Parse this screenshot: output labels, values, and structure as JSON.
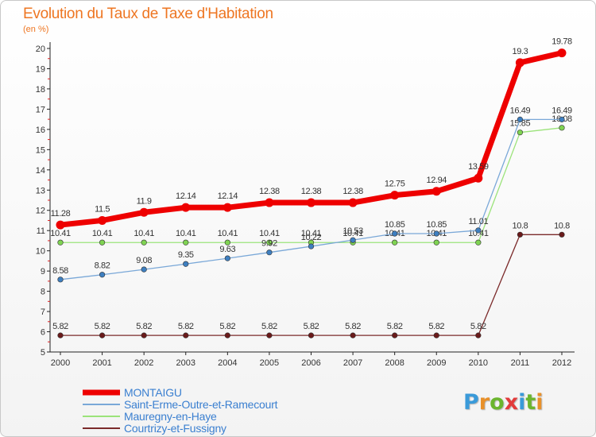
{
  "title": "Evolution du Taux de Taxe d'Habitation",
  "subtitle": "(en %)",
  "logo": {
    "text": "Proxiti",
    "letter_colors": [
      "#3a9ad9",
      "#e8902a",
      "#6bb52e",
      "#e23b3b",
      "#3a9ad9",
      "#6bb52e",
      "#e8902a"
    ]
  },
  "chart_data": {
    "type": "line",
    "x": [
      "2000",
      "2001",
      "2002",
      "2003",
      "2004",
      "2005",
      "2006",
      "2007",
      "2008",
      "2009",
      "2010",
      "2011",
      "2012"
    ],
    "ylim": [
      5,
      20
    ],
    "yticks": [
      5,
      6,
      7,
      8,
      9,
      10,
      11,
      12,
      13,
      14,
      15,
      16,
      17,
      18,
      19,
      20
    ],
    "grid": false,
    "legend_position": "bottom-left",
    "series": [
      {
        "name": "Courtrizy-et-Fussigny",
        "color": "#7b2a2a",
        "marker": "#6a1a1a",
        "width": 1.3,
        "values": [
          5.82,
          5.82,
          5.82,
          5.82,
          5.82,
          5.82,
          5.82,
          5.82,
          5.82,
          5.82,
          5.82,
          10.8,
          10.8
        ],
        "labels": [
          "5.82",
          "5.82",
          "5.82",
          "5.82",
          "5.82",
          "5.82",
          "5.82",
          "5.82",
          "5.82",
          "5.82",
          "5.82",
          "10.8",
          "10.8"
        ]
      },
      {
        "name": "Mauregny-en-Haye",
        "color": "#9be37a",
        "marker": "#7fd352",
        "width": 1.3,
        "values": [
          10.41,
          10.41,
          10.41,
          10.41,
          10.41,
          10.41,
          10.41,
          10.41,
          10.41,
          10.41,
          10.41,
          15.85,
          16.08
        ],
        "labels": [
          "10.41",
          "10.41",
          "10.41",
          "10.41",
          "10.41",
          "10.41",
          "10.41",
          "10.41",
          "10.41",
          "10.41",
          "10.41",
          "15.85",
          "16.08"
        ]
      },
      {
        "name": "Saint-Erme-Outre-et-Ramecourt",
        "color": "#7aa8d8",
        "marker": "#3e7fc0",
        "width": 1.3,
        "values": [
          8.58,
          8.82,
          9.08,
          9.35,
          9.63,
          9.92,
          10.22,
          10.53,
          10.85,
          10.85,
          11.01,
          16.49,
          16.49
        ],
        "labels": [
          "8.58",
          "8.82",
          "9.08",
          "9.35",
          "9.63",
          "9.92",
          "10.22",
          "10.53",
          "10.85",
          "10.85",
          "11.01",
          "16.49",
          "16.49"
        ]
      },
      {
        "name": "MONTAIGU",
        "color": "#ee0000",
        "marker": "#ee0000",
        "width": 7,
        "values": [
          11.28,
          11.5,
          11.9,
          12.14,
          12.14,
          12.38,
          12.38,
          12.38,
          12.75,
          12.94,
          13.59,
          19.3,
          19.78
        ],
        "labels": [
          "11.28",
          "11.5",
          "11.9",
          "12.14",
          "12.14",
          "12.38",
          "12.38",
          "12.38",
          "12.75",
          "12.94",
          "13.59",
          "19.3",
          "19.78"
        ]
      }
    ],
    "legend": [
      {
        "name": "MONTAIGU",
        "color": "#ee0000",
        "text_color": "#3a7fd0",
        "width": 7
      },
      {
        "name": "Saint-Erme-Outre-et-Ramecourt",
        "color": "#7aa8d8",
        "text_color": "#3a7fd0",
        "width": 2
      },
      {
        "name": "Mauregny-en-Haye",
        "color": "#9be37a",
        "text_color": "#3a7fd0",
        "width": 2
      },
      {
        "name": "Courtrizy-et-Fussigny",
        "color": "#7b2a2a",
        "text_color": "#3a7fd0",
        "width": 2
      }
    ]
  }
}
